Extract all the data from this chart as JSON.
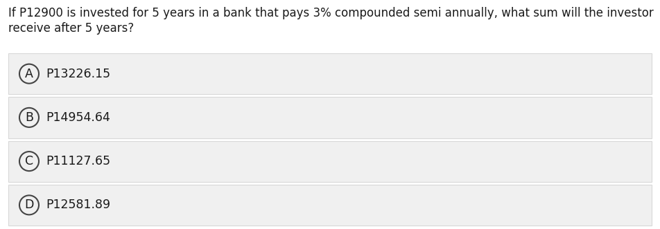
{
  "question_line1": "If P12900 is invested for 5 years in a bank that pays 3% compounded semi annually, what sum will the investor",
  "question_line2": "receive after 5 years?",
  "options": [
    {
      "label": "A",
      "text": "P13226.15"
    },
    {
      "label": "B",
      "text": "P14954.64"
    },
    {
      "label": "C",
      "text": "P11127.65"
    },
    {
      "label": "D",
      "text": "P12581.89"
    }
  ],
  "bg_color": "#ffffff",
  "option_bg_color": "#f0f0f0",
  "option_border_color": "#d8d8d8",
  "text_color": "#1a1a1a",
  "circle_edge_color": "#444444",
  "circle_face_color": "#f0f0f0",
  "question_fontsize": 12.0,
  "option_fontsize": 12.5,
  "label_fontsize": 12.5,
  "fig_width": 9.52,
  "fig_height": 3.31,
  "dpi": 100
}
